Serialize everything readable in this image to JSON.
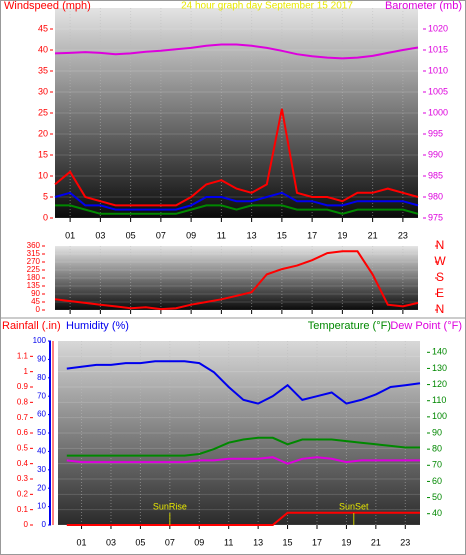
{
  "chart_data": [
    {
      "type": "line",
      "title": "24 hour graph day   September 15 2017",
      "x": [
        0,
        1,
        2,
        3,
        4,
        5,
        6,
        7,
        8,
        9,
        10,
        11,
        12,
        13,
        14,
        15,
        16,
        17,
        18,
        19,
        20,
        21,
        22,
        23,
        24
      ],
      "xlim": [
        0,
        24
      ],
      "xticks": [
        {
          "value": 1,
          "label": "01"
        },
        {
          "value": 3,
          "label": "03"
        },
        {
          "value": 5,
          "label": "05"
        },
        {
          "value": 7,
          "label": "07"
        },
        {
          "value": 9,
          "label": "09"
        },
        {
          "value": 11,
          "label": "11"
        },
        {
          "value": 13,
          "label": "13"
        },
        {
          "value": 15,
          "label": "15"
        },
        {
          "value": 17,
          "label": "17"
        },
        {
          "value": 19,
          "label": "19"
        },
        {
          "value": 21,
          "label": "21"
        },
        {
          "value": 23,
          "label": "23"
        }
      ],
      "grid": true,
      "axes": [
        {
          "label": "Windspeed (mph)",
          "color": "#ff0000",
          "lim": [
            0,
            50
          ],
          "ticks": [
            0,
            5,
            10,
            15,
            20,
            25,
            30,
            35,
            40,
            45
          ]
        },
        {
          "label": "Barometer (mb)",
          "color": "#dd00dd",
          "lim": [
            975,
            1025
          ],
          "ticks": [
            975,
            980,
            985,
            990,
            995,
            1000,
            1005,
            1010,
            1015,
            1020
          ]
        }
      ],
      "series": [
        {
          "color": "#ff0000",
          "axis": 0,
          "values": [
            8,
            11,
            5,
            4,
            3,
            3,
            3,
            3,
            3,
            5,
            8,
            9,
            7,
            6,
            8,
            26,
            6,
            5,
            5,
            4,
            6,
            6,
            7,
            6,
            5
          ]
        },
        {
          "color": "#0000ee",
          "axis": 0,
          "values": [
            5,
            6,
            3,
            3,
            2,
            2,
            2,
            2,
            2,
            3,
            5,
            5,
            4,
            4,
            5,
            6,
            4,
            4,
            3,
            3,
            4,
            4,
            4,
            4,
            3
          ]
        },
        {
          "color": "#008800",
          "axis": 0,
          "values": [
            3,
            3,
            2,
            1,
            1,
            1,
            1,
            1,
            1,
            2,
            3,
            3,
            2,
            3,
            3,
            3,
            2,
            2,
            2,
            1,
            2,
            2,
            2,
            2,
            1
          ]
        },
        {
          "color": "#dd00dd",
          "axis": 1,
          "values": [
            1014.2,
            1014.3,
            1014.5,
            1014.3,
            1014,
            1014.2,
            1014.6,
            1014.8,
            1015.2,
            1015.5,
            1016,
            1016.3,
            1016.3,
            1016,
            1015.5,
            1014.8,
            1014,
            1013.5,
            1013.2,
            1013,
            1013.2,
            1013.6,
            1014.3,
            1015,
            1015.6
          ]
        }
      ]
    },
    {
      "type": "line",
      "x": [
        0,
        1,
        2,
        3,
        4,
        5,
        6,
        7,
        8,
        9,
        10,
        11,
        12,
        13,
        14,
        15,
        16,
        17,
        18,
        19,
        20,
        21,
        22,
        23,
        24
      ],
      "xlim": [
        0,
        24
      ],
      "xticks": [
        1,
        3,
        5,
        7,
        9,
        11,
        13,
        15,
        17,
        19,
        21,
        23
      ],
      "grid": true,
      "axes": [
        {
          "color": "#ff0000",
          "lim": [
            0,
            360
          ],
          "ticks": [
            0,
            45,
            90,
            135,
            180,
            225,
            270,
            315,
            360
          ]
        },
        {
          "color": "#ff0000",
          "lim": [
            0,
            360
          ],
          "ticks": [
            {
              "value": 0,
              "label": "N"
            },
            {
              "value": 90,
              "label": "E"
            },
            {
              "value": 180,
              "label": "S"
            },
            {
              "value": 270,
              "label": "W"
            },
            {
              "value": 360,
              "label": "N"
            }
          ]
        }
      ],
      "series": [
        {
          "color": "#ff0000",
          "axis": 0,
          "values": [
            60,
            50,
            40,
            30,
            20,
            10,
            15,
            5,
            10,
            30,
            45,
            60,
            80,
            100,
            200,
            230,
            250,
            280,
            320,
            330,
            330,
            200,
            30,
            20,
            40
          ]
        }
      ]
    },
    {
      "type": "line",
      "x": [
        0,
        1,
        2,
        3,
        4,
        5,
        6,
        7,
        8,
        9,
        10,
        11,
        12,
        13,
        14,
        15,
        16,
        17,
        18,
        19,
        20,
        21,
        22,
        23,
        24
      ],
      "xlim": [
        -0.6,
        24
      ],
      "xticks": [
        {
          "value": 1,
          "label": "01"
        },
        {
          "value": 3,
          "label": "03"
        },
        {
          "value": 5,
          "label": "05"
        },
        {
          "value": 7,
          "label": "07"
        },
        {
          "value": 9,
          "label": "09"
        },
        {
          "value": 11,
          "label": "11"
        },
        {
          "value": 13,
          "label": "13"
        },
        {
          "value": 15,
          "label": "15"
        },
        {
          "value": 17,
          "label": "17"
        },
        {
          "value": 19,
          "label": "19"
        },
        {
          "value": 21,
          "label": "21"
        },
        {
          "value": 23,
          "label": "23"
        }
      ],
      "grid": true,
      "axes": [
        {
          "label": "Rainfall (.in)",
          "color": "#ff0000",
          "lim": [
            0,
            1.2
          ],
          "ticks": [
            0,
            0.1,
            0.2,
            0.3,
            0.4,
            0.5,
            0.6,
            0.7,
            0.8,
            0.9,
            1,
            1.1
          ]
        },
        {
          "label": "Humidity (%)",
          "color": "#0000ee",
          "lim": [
            0,
            100
          ],
          "ticks": [
            0,
            10,
            20,
            30,
            40,
            50,
            60,
            70,
            80,
            90,
            100
          ]
        },
        {
          "label": "Temperature (°F)",
          "color": "#008800",
          "lim": [
            33,
            147
          ],
          "ticks": [
            40,
            50,
            60,
            70,
            80,
            90,
            100,
            110,
            120,
            130,
            140
          ]
        }
      ],
      "series": [
        {
          "color": "#0000ee",
          "axis": 1,
          "values": [
            85,
            86,
            87,
            87,
            88,
            88,
            89,
            89,
            89,
            88,
            83,
            75,
            68,
            66,
            70,
            76,
            68,
            70,
            72,
            66,
            68,
            71,
            75,
            76,
            77
          ]
        },
        {
          "color": "#008800",
          "axis": 2,
          "values": [
            76,
            76,
            76,
            76,
            76,
            76,
            76,
            76,
            76,
            77,
            80,
            84,
            86,
            87,
            87,
            83,
            86,
            86,
            86,
            85,
            84,
            83,
            82,
            81,
            81
          ]
        },
        {
          "name": "Dew Point (°F)",
          "color": "#dd00dd",
          "axis": 2,
          "values": [
            73,
            72,
            72,
            72,
            72,
            72,
            72,
            72,
            72,
            73,
            73,
            74,
            74,
            74,
            75,
            71,
            74,
            75,
            74,
            72,
            73,
            73,
            73,
            73,
            73
          ]
        },
        {
          "color": "#ff0000",
          "axis": 0,
          "values": [
            0,
            0,
            0,
            0,
            0,
            0,
            0,
            0,
            0,
            0,
            0,
            0,
            0,
            0,
            0,
            0.08,
            0.08,
            0.08,
            0.08,
            0.08,
            0.08,
            0.08,
            0.08,
            0.08,
            0.08
          ]
        }
      ],
      "annotations": [
        {
          "text": "SunRise",
          "x": 7
        },
        {
          "text": "SunSet",
          "x": 19.5
        }
      ]
    }
  ]
}
